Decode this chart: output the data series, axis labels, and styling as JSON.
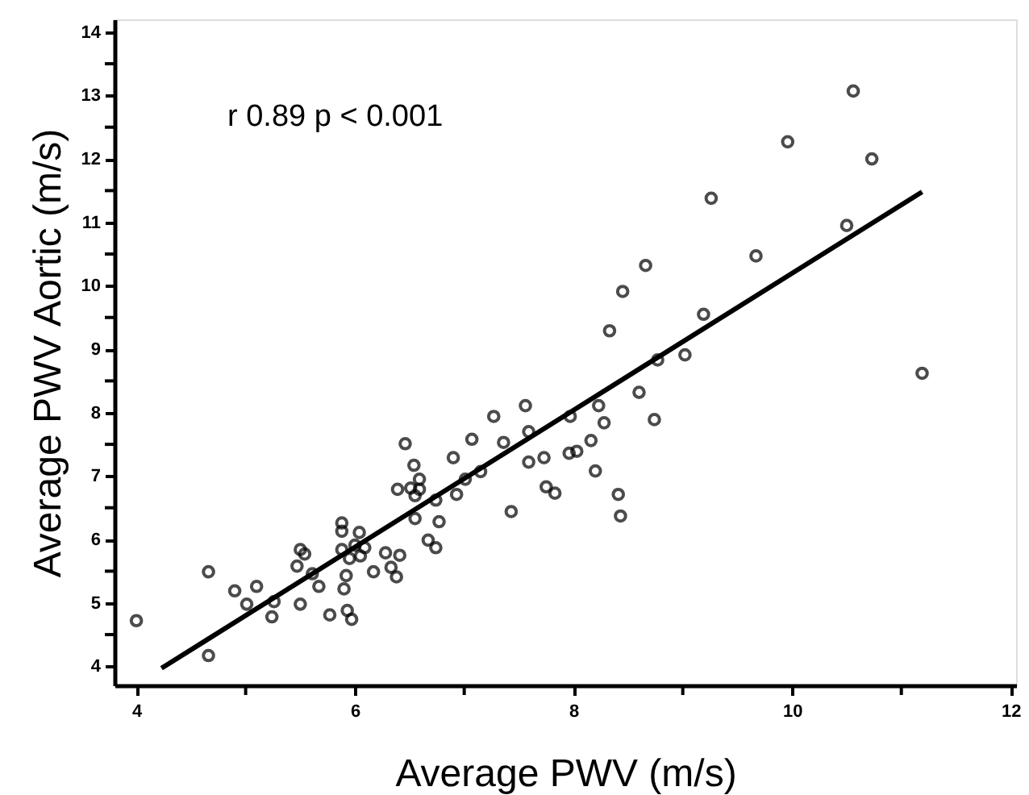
{
  "chart_data": {
    "type": "scatter",
    "xlabel": "Average PWV (m/s)",
    "ylabel": "Average PWV Aortic (m/s)",
    "annotations": [
      "r 0.89  p < 0.001"
    ],
    "xlim": [
      3.8,
      12.05
    ],
    "ylim": [
      3.7,
      14.2
    ],
    "xticks": [
      4,
      {
        "value": 5,
        "label": null
      },
      6,
      {
        "value": 7,
        "label": null
      },
      8,
      {
        "value": 9,
        "label": null
      },
      10,
      {
        "value": 11,
        "label": null
      },
      12
    ],
    "yticks": [
      4,
      {
        "value": 4.5,
        "label": null
      },
      5,
      {
        "value": 5.5,
        "label": null
      },
      6,
      {
        "value": 6.5,
        "label": null
      },
      7,
      {
        "value": 7.5,
        "label": null
      },
      8,
      {
        "value": 8.5,
        "label": null
      },
      9,
      {
        "value": 9.5,
        "label": null
      },
      10,
      {
        "value": 10.5,
        "label": null
      },
      11,
      {
        "value": 11.5,
        "label": null
      },
      12,
      {
        "value": 12.5,
        "label": null
      },
      13,
      {
        "value": 13.5,
        "label": null
      },
      14
    ],
    "grid": false,
    "series": [
      {
        "color": "#000000",
        "marker": "circle",
        "x": [
          4.0,
          4.66,
          4.66,
          4.9,
          5.01,
          5.1,
          5.24,
          5.26,
          5.47,
          5.5,
          5.54,
          5.5,
          5.61,
          5.67,
          5.77,
          5.88,
          5.88,
          5.88,
          5.92,
          5.9,
          5.93,
          5.97,
          5.95,
          6.0,
          6.04,
          6.05,
          6.09,
          6.17,
          6.28,
          6.33,
          6.38,
          6.41,
          6.39,
          6.46,
          6.51,
          6.54,
          6.55,
          6.55,
          6.59,
          6.59,
          6.67,
          6.74,
          6.74,
          6.77,
          6.9,
          6.93,
          7.01,
          7.07,
          7.15,
          7.27,
          7.36,
          7.43,
          7.56,
          7.59,
          7.59,
          7.73,
          7.75,
          7.83,
          7.97,
          7.96,
          8.03,
          8.16,
          8.2,
          8.23,
          8.28,
          8.41,
          8.43,
          8.6,
          8.74,
          11.19,
          10.56,
          9.96,
          10.73,
          9.26,
          10.5,
          9.67,
          8.66,
          8.45,
          8.33,
          9.19,
          8.77,
          9.02
        ],
        "values": [
          4.72,
          5.49,
          4.17,
          5.19,
          4.98,
          5.26,
          4.78,
          5.02,
          5.58,
          5.84,
          5.77,
          4.98,
          5.46,
          5.26,
          4.81,
          6.26,
          6.13,
          5.84,
          5.43,
          5.22,
          4.88,
          4.74,
          5.7,
          5.91,
          6.11,
          5.74,
          5.87,
          5.49,
          5.79,
          5.56,
          5.41,
          5.75,
          6.79,
          7.51,
          6.81,
          7.17,
          6.33,
          6.69,
          6.95,
          6.79,
          5.99,
          5.87,
          6.62,
          6.28,
          7.29,
          6.71,
          6.95,
          7.58,
          7.07,
          7.94,
          7.53,
          6.44,
          8.11,
          7.7,
          7.22,
          7.29,
          6.83,
          6.73,
          7.94,
          7.36,
          7.39,
          7.56,
          7.08,
          8.11,
          7.84,
          6.71,
          6.37,
          8.32,
          7.89,
          8.62,
          13.07,
          12.27,
          12.0,
          11.38,
          10.95,
          10.47,
          10.32,
          9.91,
          9.29,
          9.55,
          8.83,
          8.91
        ]
      },
      {
        "type": "line",
        "color": "#000000",
        "marker": "none",
        "line_style": "solid",
        "x": [
          4.23,
          11.19
        ],
        "values": [
          3.97,
          11.48
        ]
      }
    ]
  }
}
